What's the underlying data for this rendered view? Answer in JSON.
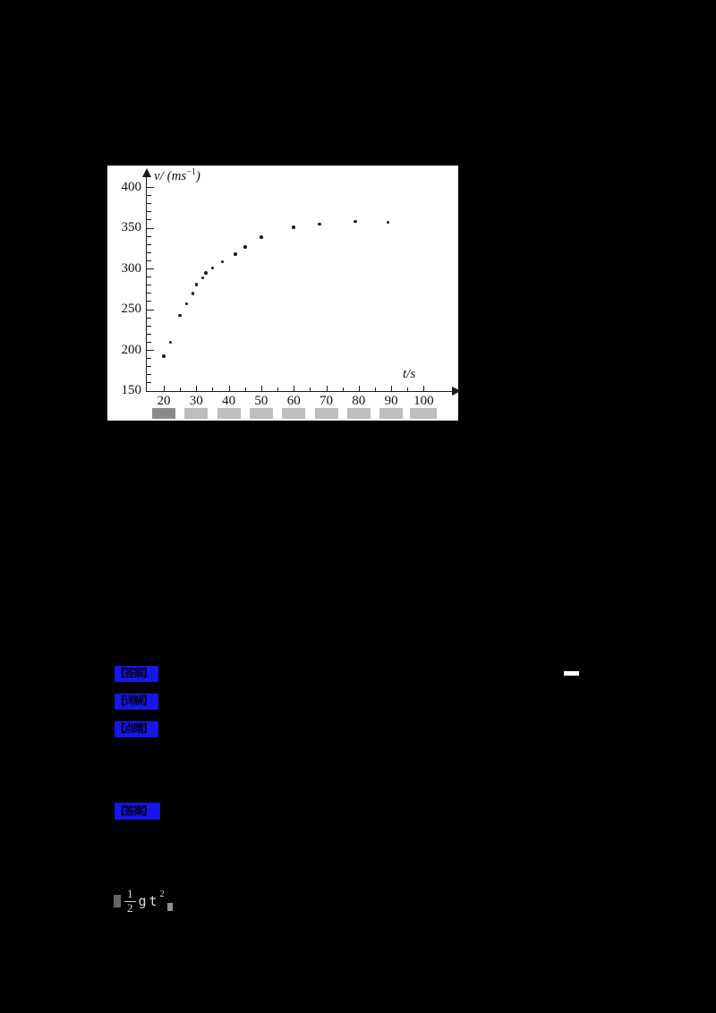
{
  "document": {
    "background": "#000000",
    "panel_background": "#ffffff"
  },
  "chart_data": {
    "type": "scatter",
    "title": "",
    "ylabel_prefix": "v/ (ms",
    "ylabel_sup": "−1",
    "ylabel_suffix": ")",
    "xlabel": "t/s",
    "x_ticks": [
      20,
      30,
      40,
      50,
      60,
      70,
      80,
      90,
      100
    ],
    "y_ticks": [
      400,
      350,
      300,
      250,
      200,
      150
    ],
    "x_minor_step": 5,
    "y_minor_step": 10,
    "xlim": [
      15,
      103
    ],
    "ylim": [
      150,
      405
    ],
    "grid": false,
    "legend": "none",
    "point_color": "#1c1c1c",
    "axis_color": "#1a1a1a",
    "points": [
      [
        20,
        193
      ],
      [
        22,
        210
      ],
      [
        25,
        243
      ],
      [
        27,
        257
      ],
      [
        29,
        270
      ],
      [
        30,
        281
      ],
      [
        32,
        289
      ],
      [
        33,
        295
      ],
      [
        35,
        301
      ],
      [
        38,
        309
      ],
      [
        42,
        318
      ],
      [
        45,
        327
      ],
      [
        50,
        339
      ],
      [
        60,
        351
      ],
      [
        68,
        355
      ],
      [
        79,
        358
      ],
      [
        89,
        357
      ]
    ]
  },
  "answer_tags": [
    {
      "label": "【答案】"
    },
    {
      "label": "【详解】"
    },
    {
      "label": "【点睛】"
    },
    {
      "label": "【答案】"
    }
  ],
  "tag_highlight_color": "#1616ec",
  "stray_mark": {
    "color": "#ffffff"
  },
  "formula": {
    "numerator": "1",
    "denominator": "2",
    "term": "gt",
    "exponent": "2",
    "color": "#dcdcdc"
  }
}
